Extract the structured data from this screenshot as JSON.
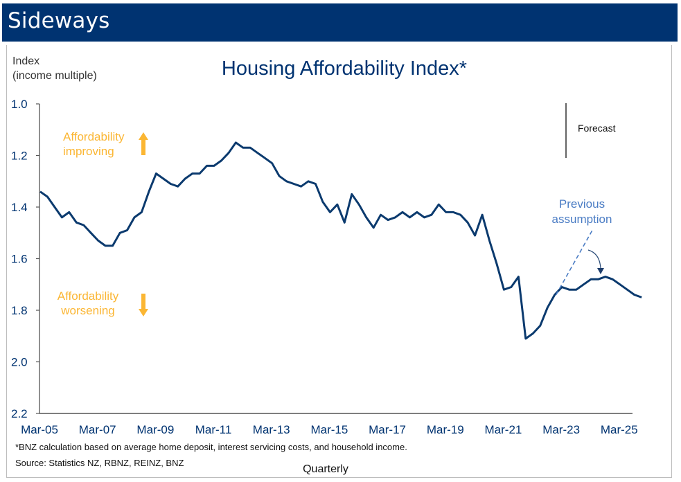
{
  "header": {
    "title": "Sideways"
  },
  "chart_data": {
    "type": "line",
    "title": "Housing Affordability Index*",
    "ylabel": [
      "Index",
      "(income multiple)"
    ],
    "xlabel": "Quarterly",
    "y_inverted": true,
    "ylim": [
      1.0,
      2.2
    ],
    "yticks": [
      "1.0",
      "1.2",
      "1.4",
      "1.6",
      "1.8",
      "2.0",
      "2.2"
    ],
    "ytick_values": [
      1.0,
      1.2,
      1.4,
      1.6,
      1.8,
      2.0,
      2.2
    ],
    "xticks": [
      "Mar-05",
      "Mar-07",
      "Mar-09",
      "Mar-11",
      "Mar-13",
      "Mar-15",
      "Mar-17",
      "Mar-19",
      "Mar-21",
      "Mar-23",
      "Mar-25"
    ],
    "xtick_quarter_index": [
      0,
      8,
      16,
      24,
      32,
      40,
      48,
      56,
      64,
      72,
      80
    ],
    "x_start": "Mar-05",
    "x_end": "Dec-25",
    "frequency": "quarterly",
    "grid": false,
    "series": [
      {
        "name": "Housing Affordability Index",
        "color": "#0B3A6E",
        "values": [
          1.34,
          1.36,
          1.4,
          1.44,
          1.42,
          1.46,
          1.47,
          1.5,
          1.53,
          1.55,
          1.55,
          1.5,
          1.49,
          1.44,
          1.42,
          1.34,
          1.27,
          1.29,
          1.31,
          1.32,
          1.29,
          1.27,
          1.27,
          1.24,
          1.24,
          1.22,
          1.19,
          1.15,
          1.17,
          1.17,
          1.19,
          1.21,
          1.23,
          1.28,
          1.3,
          1.31,
          1.32,
          1.3,
          1.31,
          1.38,
          1.42,
          1.39,
          1.46,
          1.35,
          1.39,
          1.44,
          1.48,
          1.43,
          1.45,
          1.44,
          1.42,
          1.44,
          1.42,
          1.44,
          1.43,
          1.39,
          1.42,
          1.42,
          1.43,
          1.46,
          1.51,
          1.43,
          1.53,
          1.62,
          1.72,
          1.71,
          1.67,
          1.91,
          1.89,
          1.86,
          1.79,
          1.74,
          1.71,
          1.72,
          1.72,
          1.7,
          1.68,
          1.68,
          1.67,
          1.68,
          1.7,
          1.72,
          1.74,
          1.75
        ]
      },
      {
        "name": "Previous assumption",
        "style": "dashed",
        "color": "#4A7CC4",
        "points": [
          [
            71,
            1.74
          ],
          [
            76,
            1.49
          ]
        ]
      }
    ],
    "forecast_start_index": 72.5,
    "annotations": {
      "forecast": "Forecast",
      "improving": [
        "Affordability",
        "improving"
      ],
      "worsening": [
        "Affordability",
        "worsening"
      ],
      "previous": [
        "Previous",
        "assumption"
      ],
      "orange_color": "#FBB633",
      "blue_color": "#4A7CC4"
    },
    "footnote": "*BNZ calculation based on average home deposit, interest servicing costs, and household income.",
    "source": "Source: Statistics NZ, RBNZ, REINZ, BNZ"
  }
}
